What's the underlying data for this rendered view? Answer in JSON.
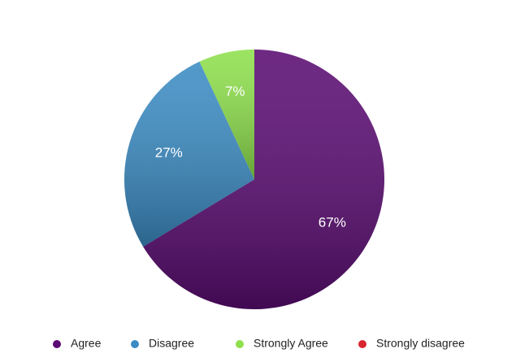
{
  "chart_data": {
    "type": "pie",
    "categories": [
      "Agree",
      "Disagree",
      "Strongly Agree",
      "Strongly disagree"
    ],
    "values": [
      67,
      27,
      7,
      0
    ],
    "value_labels": [
      "67%",
      "27%",
      "7%",
      null
    ],
    "colors": [
      "#5a0c72",
      "#3b8cc4",
      "#8ee04c",
      "#d9252f"
    ],
    "legend": "bottom"
  }
}
